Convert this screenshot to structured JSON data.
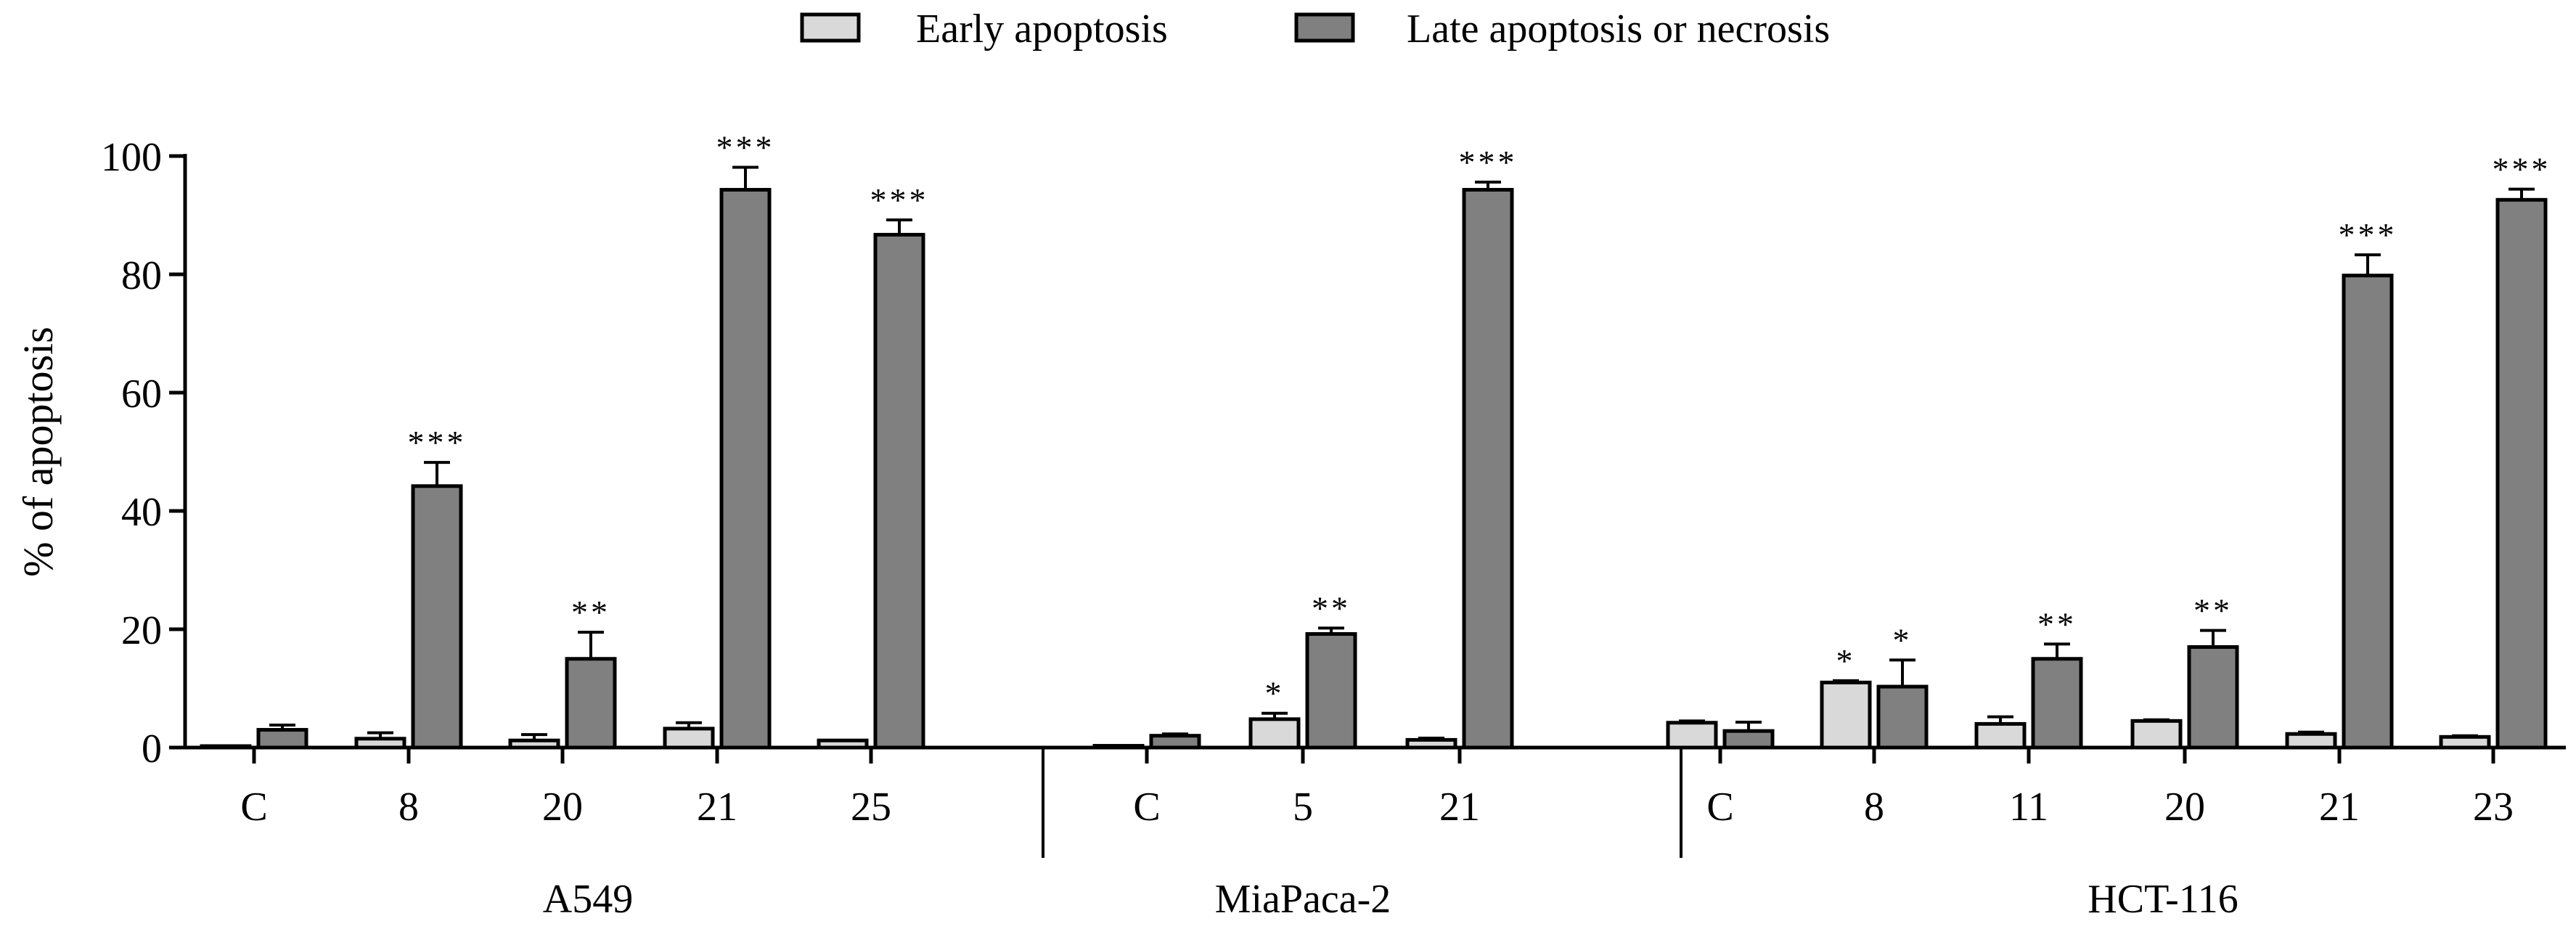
{
  "chart_data": {
    "type": "bar",
    "title": "",
    "xlabel": "",
    "ylabel": "% of apoptosis",
    "ylim": [
      0,
      100
    ],
    "yticks": [
      0,
      20,
      40,
      60,
      80,
      100
    ],
    "legend": [
      {
        "name": "Early apoptosis",
        "color": "#d9d9d9"
      },
      {
        "name": "Late apoptosis or necrosis",
        "color": "#808080"
      }
    ],
    "groups": [
      {
        "name": "A549",
        "categories": [
          {
            "label": "C",
            "early": 0.2,
            "early_err": 0.0,
            "late": 3.0,
            "late_err": 0.8,
            "early_sig": "",
            "late_sig": ""
          },
          {
            "label": "8",
            "early": 1.5,
            "early_err": 1.0,
            "late": 44.2,
            "late_err": 4.0,
            "early_sig": "",
            "late_sig": "***"
          },
          {
            "label": "20",
            "early": 1.2,
            "early_err": 1.0,
            "late": 15.0,
            "late_err": 4.5,
            "early_sig": "",
            "late_sig": "**"
          },
          {
            "label": "21",
            "early": 3.2,
            "early_err": 1.0,
            "late": 94.3,
            "late_err": 3.8,
            "early_sig": "",
            "late_sig": "***"
          },
          {
            "label": "25",
            "early": 1.2,
            "early_err": 0.0,
            "late": 86.7,
            "late_err": 2.5,
            "early_sig": "",
            "late_sig": "***"
          }
        ]
      },
      {
        "name": "MiaPaca-2",
        "categories": [
          {
            "label": "C",
            "early": 0.3,
            "early_err": 0.0,
            "late": 2.0,
            "late_err": 0.3,
            "early_sig": "",
            "late_sig": ""
          },
          {
            "label": "5",
            "early": 4.8,
            "early_err": 1.0,
            "late": 19.2,
            "late_err": 1.0,
            "early_sig": "*",
            "late_sig": "**"
          },
          {
            "label": "21",
            "early": 1.3,
            "early_err": 0.3,
            "late": 94.3,
            "late_err": 1.3,
            "early_sig": "",
            "late_sig": "***"
          }
        ]
      },
      {
        "name": "HCT-116",
        "categories": [
          {
            "label": "C",
            "early": 4.2,
            "early_err": 0.3,
            "late": 2.8,
            "late_err": 1.5,
            "early_sig": "",
            "late_sig": ""
          },
          {
            "label": "8",
            "early": 11.0,
            "early_err": 0.3,
            "late": 10.3,
            "late_err": 4.5,
            "early_sig": "*",
            "late_sig": "*"
          },
          {
            "label": "11",
            "early": 4.0,
            "early_err": 1.2,
            "late": 15.0,
            "late_err": 2.5,
            "early_sig": "",
            "late_sig": "**"
          },
          {
            "label": "20",
            "early": 4.5,
            "early_err": 0.2,
            "late": 17.0,
            "late_err": 2.8,
            "early_sig": "",
            "late_sig": "**"
          },
          {
            "label": "21",
            "early": 2.3,
            "early_err": 0.3,
            "late": 79.8,
            "late_err": 3.5,
            "early_sig": "",
            "late_sig": "***"
          },
          {
            "label": "23",
            "early": 1.8,
            "early_err": 0.2,
            "late": 92.6,
            "late_err": 1.8,
            "early_sig": "",
            "late_sig": "***"
          }
        ]
      }
    ]
  }
}
